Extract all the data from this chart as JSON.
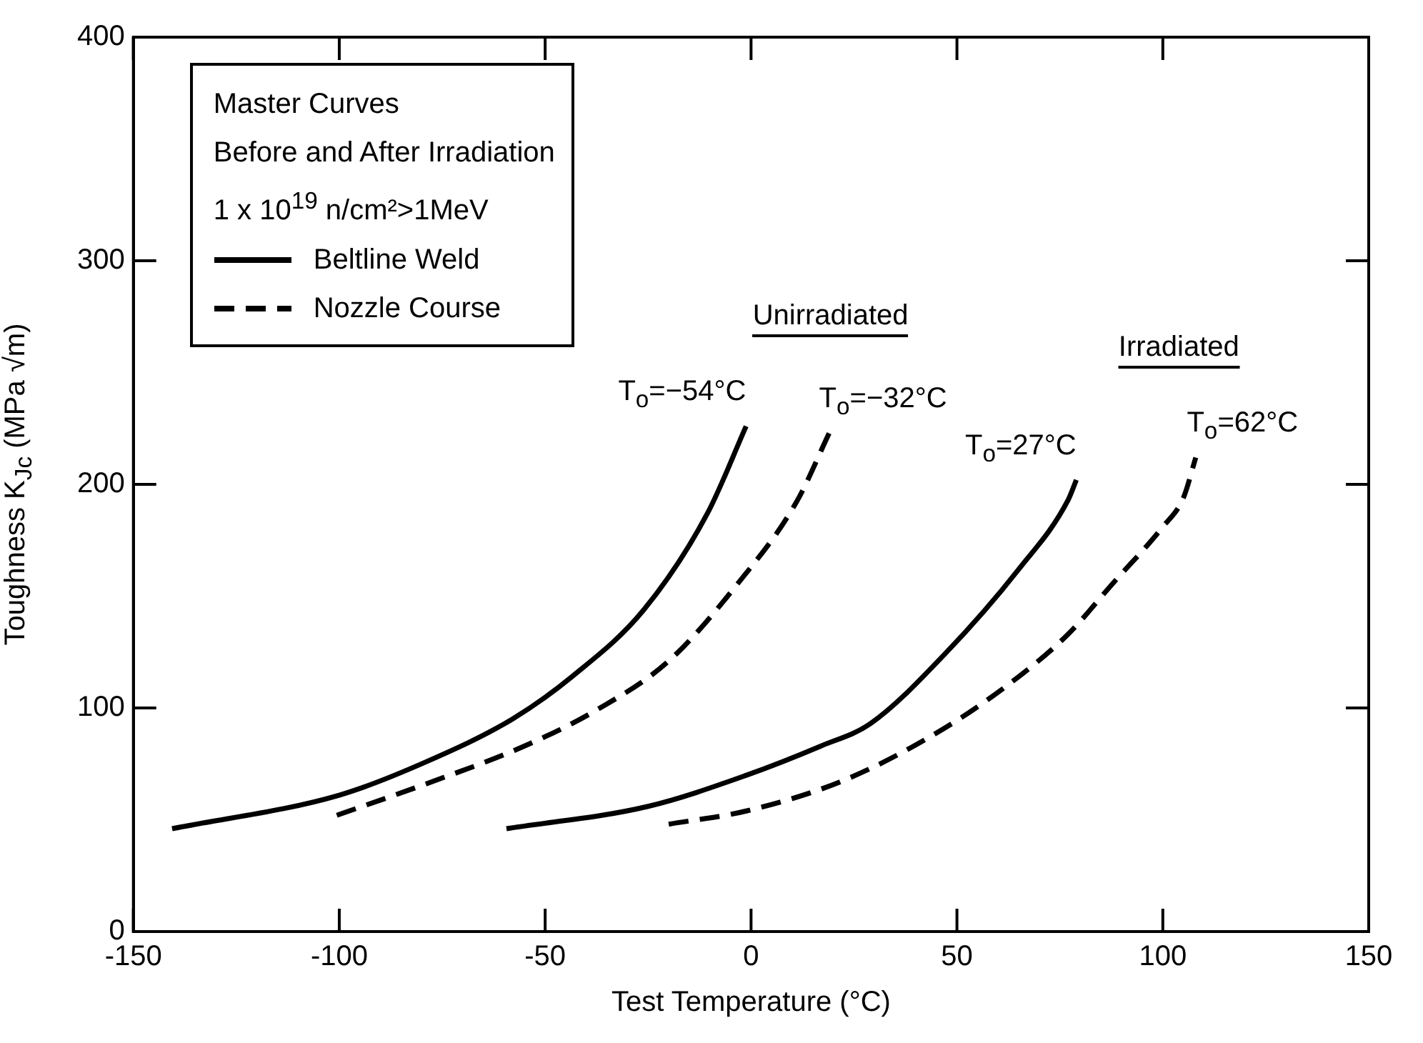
{
  "chart_data": {
    "type": "line",
    "xlabel": "Test Temperature (°C)",
    "ylabel": "Toughness K$_{Jc}$ (MPa √m)",
    "legend_title": "Master Curves\nBefore and After Irradiation\n1 x 10$^{19}$ n/cm²>1MeV",
    "legend": "top left",
    "marker": "none",
    "grid": false,
    "xlim": [
      -150,
      150
    ],
    "xticks": [
      -150,
      -100,
      -50,
      0,
      50,
      100,
      150
    ],
    "ylim": [
      0,
      400
    ],
    "yticks": [
      0,
      100,
      200,
      300,
      400
    ],
    "series": [
      {
        "name": "Beltline Weld",
        "color": "#000000",
        "line_style": "solid",
        "x": [
          -140.6,
          -100,
          -78.8,
          -58,
          -43.5,
          -26,
          -10.6,
          -1.2
        ],
        "values": [
          46,
          61,
          76,
          95,
          114,
          144,
          187,
          226
        ]
      },
      {
        "name": "Nozzle Course",
        "color": "#000000",
        "line_style": "dashed",
        "x": [
          -100.6,
          -79,
          -55,
          -37.6,
          -20,
          -3.5,
          11,
          19
        ],
        "values": [
          52,
          66,
          83,
          99,
          121,
          155,
          192,
          223
        ]
      },
      {
        "color": "#000000",
        "line_style": "solid",
        "x": [
          -59.4,
          -25,
          -1,
          17,
          29,
          47,
          65,
          77,
          79
        ],
        "values": [
          46,
          56,
          70,
          83,
          93,
          124,
          162,
          193,
          202
        ]
      },
      {
        "color": "#000000",
        "line_style": "dashed",
        "x": [
          -20,
          -1,
          23,
          47,
          65,
          77,
          88,
          100,
          105,
          108
        ],
        "values": [
          48,
          54,
          68,
          91,
          114,
          133,
          156,
          181,
          194,
          212
        ]
      }
    ],
    "annotations": [
      {
        "text": "T$_{o}$=−54°C",
        "x": -1.2,
        "y": 226
      },
      {
        "text": "T$_{o}$=−32°C",
        "x": 19,
        "y": 223
      },
      {
        "text": "T$_{o}$=27°C",
        "x": 79,
        "y": 202
      },
      {
        "text": "T$_{o}$=62°C",
        "x": 108,
        "y": 212
      },
      "Unirradiated",
      "Irradiated"
    ]
  }
}
